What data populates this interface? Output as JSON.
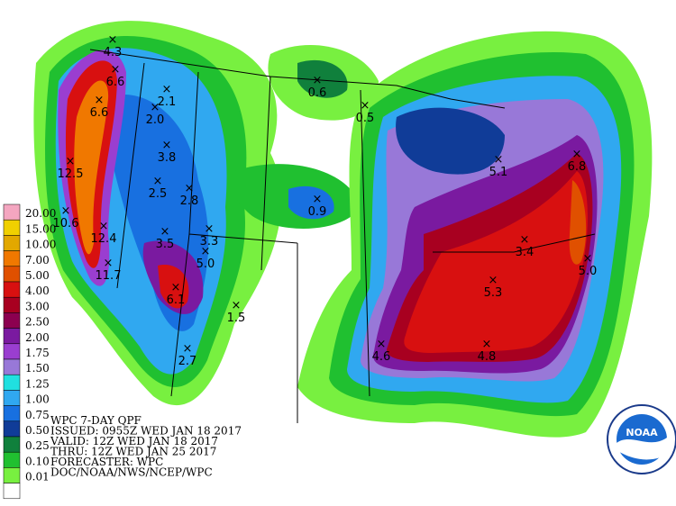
{
  "title_lines": [
    "WPC 7-DAY QPF",
    "ISSUED: 0955Z WED JAN 18 2017",
    "VALID: 12Z WED JAN 18 2017",
    "THRU: 12Z WED JAN 25 2017",
    "FORECASTER: WPC",
    "DOC/NOAA/NWS/NCEP/WPC"
  ],
  "legend": [
    {
      "label": "20.00",
      "color": "#f4a6c0"
    },
    {
      "label": "15.00",
      "color": "#f0d000"
    },
    {
      "label": "10.00",
      "color": "#e2a800"
    },
    {
      "label": "7.00",
      "color": "#f07800"
    },
    {
      "label": "5.00",
      "color": "#e05000"
    },
    {
      "label": "4.00",
      "color": "#d81010"
    },
    {
      "label": "3.00",
      "color": "#a80020"
    },
    {
      "label": "2.50",
      "color": "#8c0050"
    },
    {
      "label": "2.00",
      "color": "#7a1aa0"
    },
    {
      "label": "1.75",
      "color": "#9a3ed0"
    },
    {
      "label": "1.50",
      "color": "#9878d8"
    },
    {
      "label": "1.25",
      "color": "#20e0e0"
    },
    {
      "label": "1.00",
      "color": "#30a8f0"
    },
    {
      "label": "0.75",
      "color": "#1870e0"
    },
    {
      "label": "0.50",
      "color": "#103c98"
    },
    {
      "label": "0.25",
      "color": "#10803c"
    },
    {
      "label": "0.10",
      "color": "#20c030"
    },
    {
      "label": "0.01",
      "color": "#78f040"
    }
  ],
  "maxima": [
    "4.3",
    "6.6",
    "6.6",
    "12.5",
    "10.6",
    "12.4",
    "11.7",
    "2.1",
    "2.0",
    "3.8",
    "2.5",
    "2.8",
    "3.5",
    "3.3",
    "5.0",
    "6.1",
    "1.5",
    "2.7",
    "0.6",
    "0.5",
    "0.9",
    "5.1",
    "6.8",
    "3.4",
    "5.0",
    "5.3",
    "4.6",
    "4.8"
  ],
  "logo": "NOAA"
}
